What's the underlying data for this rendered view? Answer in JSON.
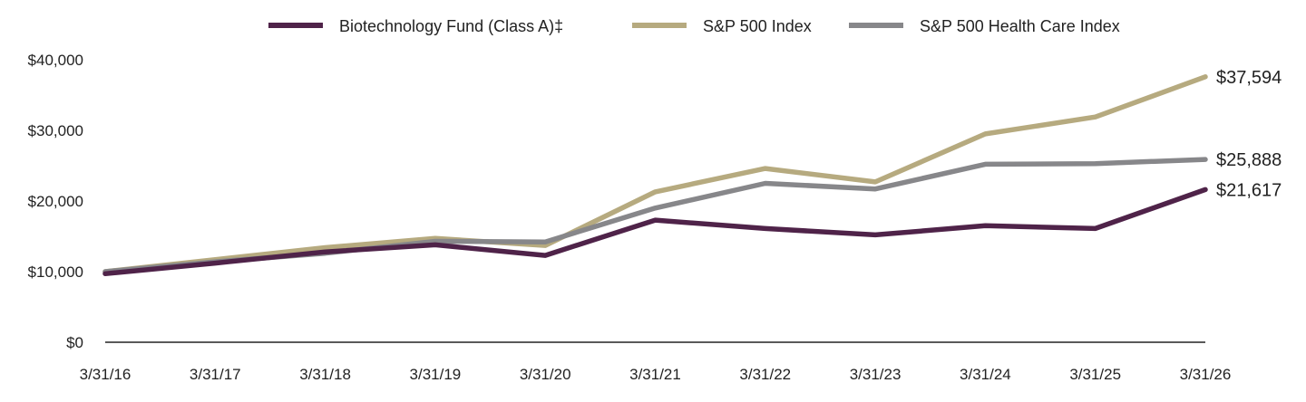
{
  "chart_data": {
    "type": "line",
    "title": "",
    "xlabel": "",
    "ylabel": "",
    "categories": [
      "3/31/16",
      "3/31/17",
      "3/31/18",
      "3/31/19",
      "3/31/20",
      "3/31/21",
      "3/31/22",
      "3/31/23",
      "3/31/24",
      "3/31/25",
      "3/31/26"
    ],
    "ylim": [
      0,
      40000
    ],
    "y_ticks": [
      0,
      10000,
      20000,
      30000,
      40000
    ],
    "y_tick_labels": [
      "$0",
      "$10,000",
      "$20,000",
      "$30,000",
      "$40,000"
    ],
    "grid": false,
    "legend_position": "top-center",
    "series": [
      {
        "name": "Biotechnology Fund (Class A)‡",
        "color": "#4f2349",
        "values": [
          9700,
          11200,
          12800,
          13800,
          12300,
          17300,
          16100,
          15200,
          16500,
          16100,
          21617
        ],
        "end_label": "$21,617"
      },
      {
        "name": "S&P 500 Index",
        "color": "#b6aa7f",
        "values": [
          10000,
          11700,
          13400,
          14700,
          13700,
          21300,
          24600,
          22700,
          29500,
          31900,
          37594
        ],
        "end_label": "$37,594"
      },
      {
        "name": "S&P 500 Health Care Index",
        "color": "#87878a",
        "values": [
          10000,
          11400,
          12600,
          14300,
          14200,
          19000,
          22500,
          21700,
          25200,
          25300,
          25888
        ],
        "end_label": "$25,888"
      }
    ]
  }
}
